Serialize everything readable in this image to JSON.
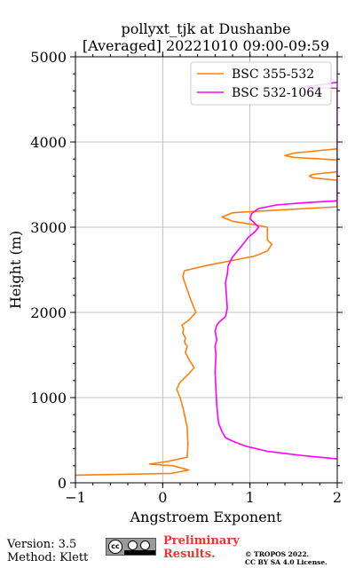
{
  "chart_data": {
    "type": "line",
    "title": "pollyxt_tjk at Dushanbe",
    "subtitle": "[Averaged] 20221010 09:00-09:59",
    "xlabel": "Angstroem Exponent",
    "ylabel": "Height (m)",
    "xlim": [
      -1,
      2
    ],
    "ylim": [
      0,
      5000
    ],
    "xticks": [
      "−1",
      "0",
      "1",
      "2"
    ],
    "yticks": [
      "0",
      "1000",
      "2000",
      "3000",
      "4000",
      "5000"
    ],
    "grid": true,
    "legend": "top-right",
    "series": [
      {
        "name": "BSC 355-532",
        "color": "#ff7f0e",
        "points": [
          [
            -1.0,
            90
          ],
          [
            0.1,
            110
          ],
          [
            0.3,
            150
          ],
          [
            0.12,
            200
          ],
          [
            -0.15,
            220
          ],
          [
            0.05,
            250
          ],
          [
            0.28,
            300
          ],
          [
            0.29,
            450
          ],
          [
            0.28,
            650
          ],
          [
            0.24,
            850
          ],
          [
            0.2,
            1000
          ],
          [
            0.16,
            1100
          ],
          [
            0.2,
            1180
          ],
          [
            0.3,
            1280
          ],
          [
            0.36,
            1350
          ],
          [
            0.3,
            1450
          ],
          [
            0.26,
            1530
          ],
          [
            0.28,
            1600
          ],
          [
            0.25,
            1650
          ],
          [
            0.26,
            1700
          ],
          [
            0.23,
            1760
          ],
          [
            0.24,
            1800
          ],
          [
            0.22,
            1850
          ],
          [
            0.3,
            1910
          ],
          [
            0.38,
            2000
          ],
          [
            0.32,
            2150
          ],
          [
            0.27,
            2300
          ],
          [
            0.23,
            2420
          ],
          [
            0.25,
            2490
          ],
          [
            0.5,
            2550
          ],
          [
            0.75,
            2600
          ],
          [
            1.05,
            2660
          ],
          [
            1.2,
            2720
          ],
          [
            1.25,
            2800
          ],
          [
            1.2,
            2850
          ],
          [
            1.2,
            2900
          ],
          [
            1.2,
            3000
          ],
          [
            1.1,
            3020
          ],
          [
            0.8,
            3070
          ],
          [
            0.68,
            3120
          ],
          [
            0.8,
            3170
          ],
          [
            1.3,
            3200
          ],
          [
            2.0,
            3240
          ],
          [
            2.0,
            3550
          ],
          [
            1.72,
            3580
          ],
          [
            1.68,
            3600
          ],
          [
            1.72,
            3620
          ],
          [
            2.0,
            3650
          ],
          [
            2.0,
            3790
          ],
          [
            1.5,
            3820
          ],
          [
            1.4,
            3840
          ],
          [
            1.5,
            3870
          ],
          [
            2.0,
            3920
          ]
        ]
      },
      {
        "name": "BSC 532-1064",
        "color": "#ff00ff",
        "points": [
          [
            2.0,
            280
          ],
          [
            1.6,
            320
          ],
          [
            1.2,
            370
          ],
          [
            0.95,
            430
          ],
          [
            0.8,
            490
          ],
          [
            0.72,
            530
          ],
          [
            0.68,
            600
          ],
          [
            0.64,
            700
          ],
          [
            0.62,
            900
          ],
          [
            0.61,
            1100
          ],
          [
            0.6,
            1300
          ],
          [
            0.61,
            1500
          ],
          [
            0.6,
            1600
          ],
          [
            0.62,
            1680
          ],
          [
            0.6,
            1780
          ],
          [
            0.62,
            1850
          ],
          [
            0.65,
            1890
          ],
          [
            0.72,
            1950
          ],
          [
            0.74,
            2050
          ],
          [
            0.73,
            2200
          ],
          [
            0.72,
            2350
          ],
          [
            0.74,
            2450
          ],
          [
            0.75,
            2550
          ],
          [
            0.8,
            2650
          ],
          [
            0.88,
            2750
          ],
          [
            0.92,
            2800
          ],
          [
            0.98,
            2880
          ],
          [
            1.05,
            2940
          ],
          [
            1.1,
            3000
          ],
          [
            1.05,
            3050
          ],
          [
            1.0,
            3100
          ],
          [
            1.02,
            3160
          ],
          [
            1.1,
            3220
          ],
          [
            1.3,
            3260
          ],
          [
            1.6,
            3285
          ],
          [
            2.0,
            3310
          ],
          [
            2.0,
            4630
          ],
          [
            1.7,
            4640
          ],
          [
            1.62,
            4650
          ],
          [
            1.75,
            4665
          ],
          [
            2.0,
            4700
          ]
        ]
      }
    ]
  },
  "footer": {
    "version": "Version: 3.5",
    "method": "Method: Klett",
    "cc_text": "cc",
    "preliminary": "Preliminary",
    "results": "Results.",
    "copyright_line1": "© TROPOS 2022.",
    "copyright_line2": "CC BY SA 4.0 License."
  }
}
